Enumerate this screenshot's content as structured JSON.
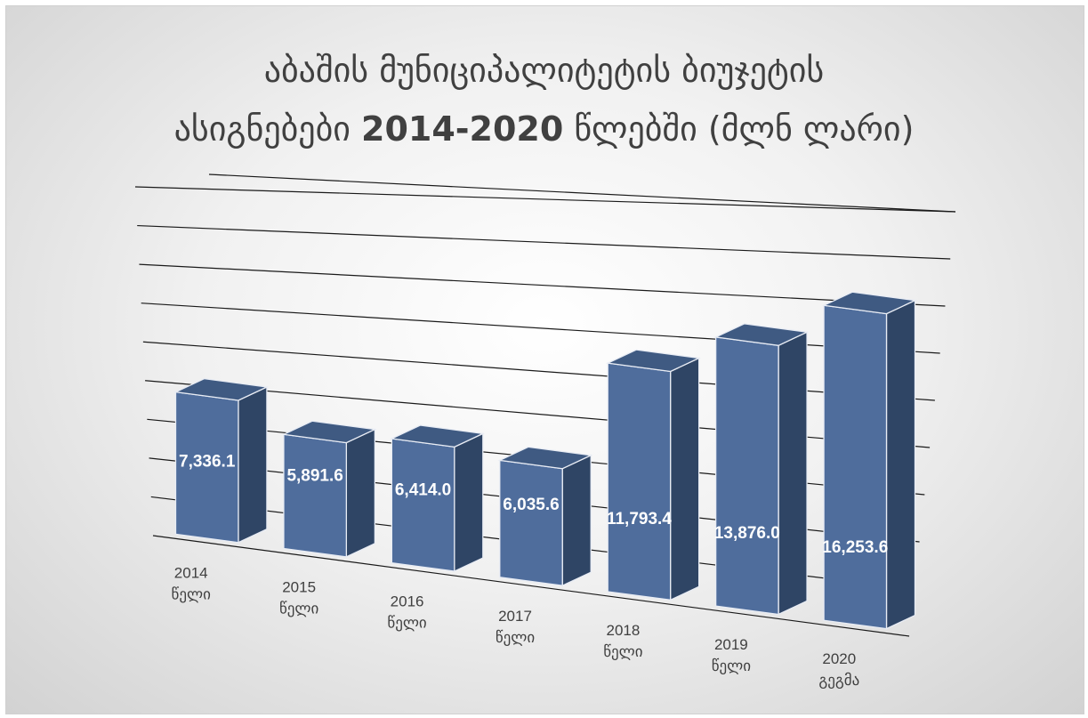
{
  "title": {
    "line1": "აბაშის მუნიციპალიტეტის ბიუჯეტის",
    "line2_text": "ასიგნებები ",
    "line2_years": "2014-2020",
    "line2_rest": " წლებში (მლნ ლარი)"
  },
  "chart_data": {
    "type": "bar",
    "title": "აბაშის მუნიციპალიტეტის ბიუჯეტის ასიგნებები 2014-2020 წლებში (მლნ ლარი)",
    "categories": [
      [
        "2014",
        "წელი"
      ],
      [
        "2015",
        "წელი"
      ],
      [
        "2016",
        "წელი"
      ],
      [
        "2017",
        "წელი"
      ],
      [
        "2018",
        "წელი"
      ],
      [
        "2019",
        "წელი"
      ],
      [
        "2020",
        "გეგმა"
      ]
    ],
    "values": [
      7336.1,
      5891.6,
      6414.0,
      6035.6,
      11793.4,
      13876.0,
      16253.6
    ],
    "data_labels": [
      "7,336.1",
      "5,891.6",
      "6,414.0",
      "6,035.6",
      "11,793.4",
      "13,876.0",
      "16,253.6"
    ],
    "ylim": [
      0,
      18000
    ],
    "grid": true,
    "style": "3d-column",
    "bar_color": "#4f6d9c"
  }
}
